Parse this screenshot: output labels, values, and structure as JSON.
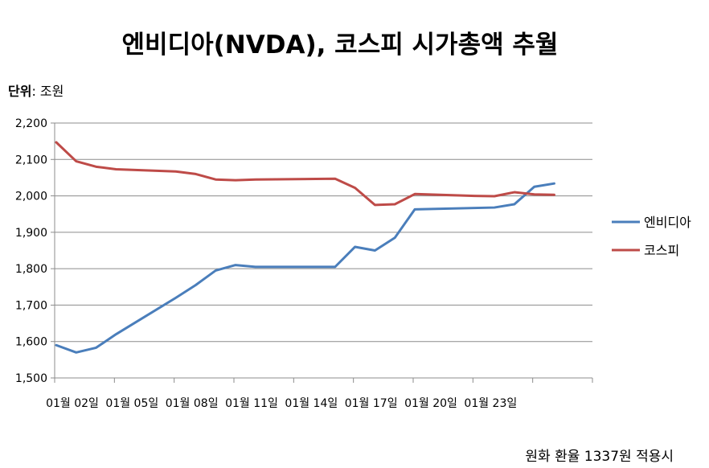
{
  "chart_data": {
    "type": "line",
    "title": "엔비디아(NVDA),  코스피 시가총액 추월",
    "unit_label": "단위",
    "unit_value": ": 조원",
    "footnote": "원화 환율 1337원 적용시",
    "xlabel": "",
    "ylabel": "",
    "ylim": [
      1500,
      2200
    ],
    "yticks": [
      1500,
      1600,
      1700,
      1800,
      1900,
      2000,
      2100,
      2200
    ],
    "ytick_labels": [
      "1,500",
      "1,600",
      "1,700",
      "1,800",
      "1,900",
      "2,000",
      "2,100",
      "2,200"
    ],
    "x": [
      1,
      2,
      3,
      4,
      5,
      6,
      7,
      8,
      9,
      10,
      11,
      12,
      13,
      14,
      15,
      16,
      17,
      18,
      19,
      20,
      21,
      22,
      23,
      24,
      25,
      26,
      27,
      28
    ],
    "x_tick_positions": [
      1,
      4,
      7,
      10,
      13,
      16,
      19,
      22
    ],
    "x_tick_labels": [
      "01월 02일",
      "01월 05일",
      "01월 08일",
      "01월 11일",
      "01월 14일",
      "01월 17일",
      "01월 20일",
      "01월 23일"
    ],
    "grid": "horizontal",
    "legend_position": "right",
    "series": [
      {
        "name": "엔비디아",
        "color": "#4a7ebb",
        "points": [
          [
            1,
            1590
          ],
          [
            2,
            1570
          ],
          [
            3,
            1583
          ],
          [
            4,
            1620
          ],
          [
            7,
            1720
          ],
          [
            8,
            1755
          ],
          [
            9,
            1795
          ],
          [
            10,
            1810
          ],
          [
            11,
            1805
          ],
          [
            15,
            1805
          ],
          [
            16,
            1860
          ],
          [
            17,
            1850
          ],
          [
            18,
            1885
          ],
          [
            19,
            1963
          ],
          [
            23,
            1968
          ],
          [
            24,
            1977
          ],
          [
            25,
            2025
          ],
          [
            26,
            2034
          ]
        ]
      },
      {
        "name": "코스피",
        "color": "#be4b48",
        "points": [
          [
            1,
            2147
          ],
          [
            2,
            2095
          ],
          [
            3,
            2080
          ],
          [
            4,
            2073
          ],
          [
            7,
            2067
          ],
          [
            8,
            2060
          ],
          [
            9,
            2045
          ],
          [
            10,
            2043
          ],
          [
            11,
            2045
          ],
          [
            15,
            2047
          ],
          [
            16,
            2022
          ],
          [
            17,
            1975
          ],
          [
            18,
            1977
          ],
          [
            19,
            2005
          ],
          [
            22,
            2000
          ],
          [
            23,
            1999
          ],
          [
            24,
            2010
          ],
          [
            25,
            2004
          ],
          [
            26,
            2003
          ]
        ]
      }
    ]
  }
}
